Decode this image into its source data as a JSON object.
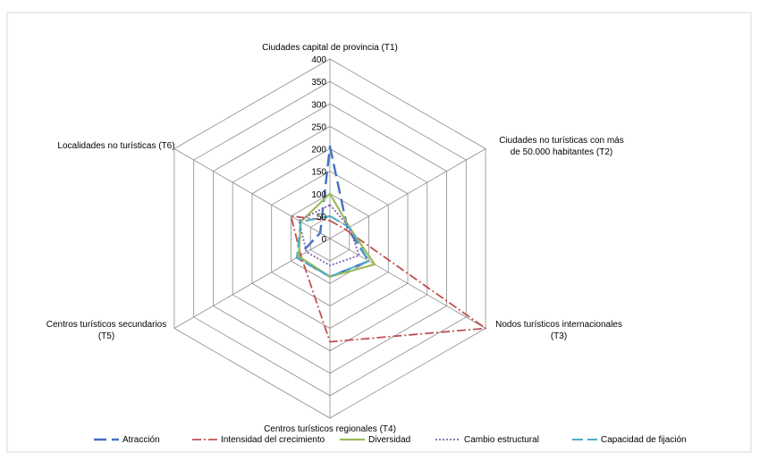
{
  "chart_data": {
    "type": "radar",
    "axes": [
      [
        "Ciudades capital de provincia (T1)"
      ],
      [
        "Ciudades no turísticas con más",
        "de 50.000 habitantes (T2)"
      ],
      [
        "Nodos turísticos internacionales",
        "(T3)"
      ],
      [
        "Centros turísticos regionales (T4)"
      ],
      [
        "Centros turísticos secundarios",
        "(T5)"
      ],
      [
        "Localidades no turísticas (T6)"
      ]
    ],
    "rlim": [
      0,
      400
    ],
    "ticks": [
      0,
      50,
      100,
      150,
      200,
      250,
      300,
      350,
      400
    ],
    "grid": true,
    "legend_position": "bottom",
    "series": [
      {
        "name": "Atracción",
        "values": [
          205,
          45,
          100,
          85,
          85,
          25
        ],
        "color": "#4472C4",
        "dash": "14,6",
        "width": 2.4
      },
      {
        "name": "Intensidad del crecimiento",
        "values": [
          40,
          40,
          400,
          230,
          75,
          100
        ],
        "color": "#C0504D",
        "dash": "10,3,2,3",
        "width": 1.8
      },
      {
        "name": "Diversidad",
        "values": [
          100,
          50,
          115,
          85,
          80,
          75
        ],
        "color": "#9BBB59",
        "dash": "",
        "width": 2.2
      },
      {
        "name": "Cambio estructural",
        "values": [
          75,
          50,
          75,
          60,
          60,
          80
        ],
        "color": "#7F5FB3",
        "dash": "2,2",
        "width": 1.8
      },
      {
        "name": "Capacidad de fijación",
        "values": [
          50,
          50,
          100,
          85,
          85,
          75
        ],
        "color": "#4BACC6",
        "dash": "12,5",
        "width": 2.0
      }
    ]
  }
}
